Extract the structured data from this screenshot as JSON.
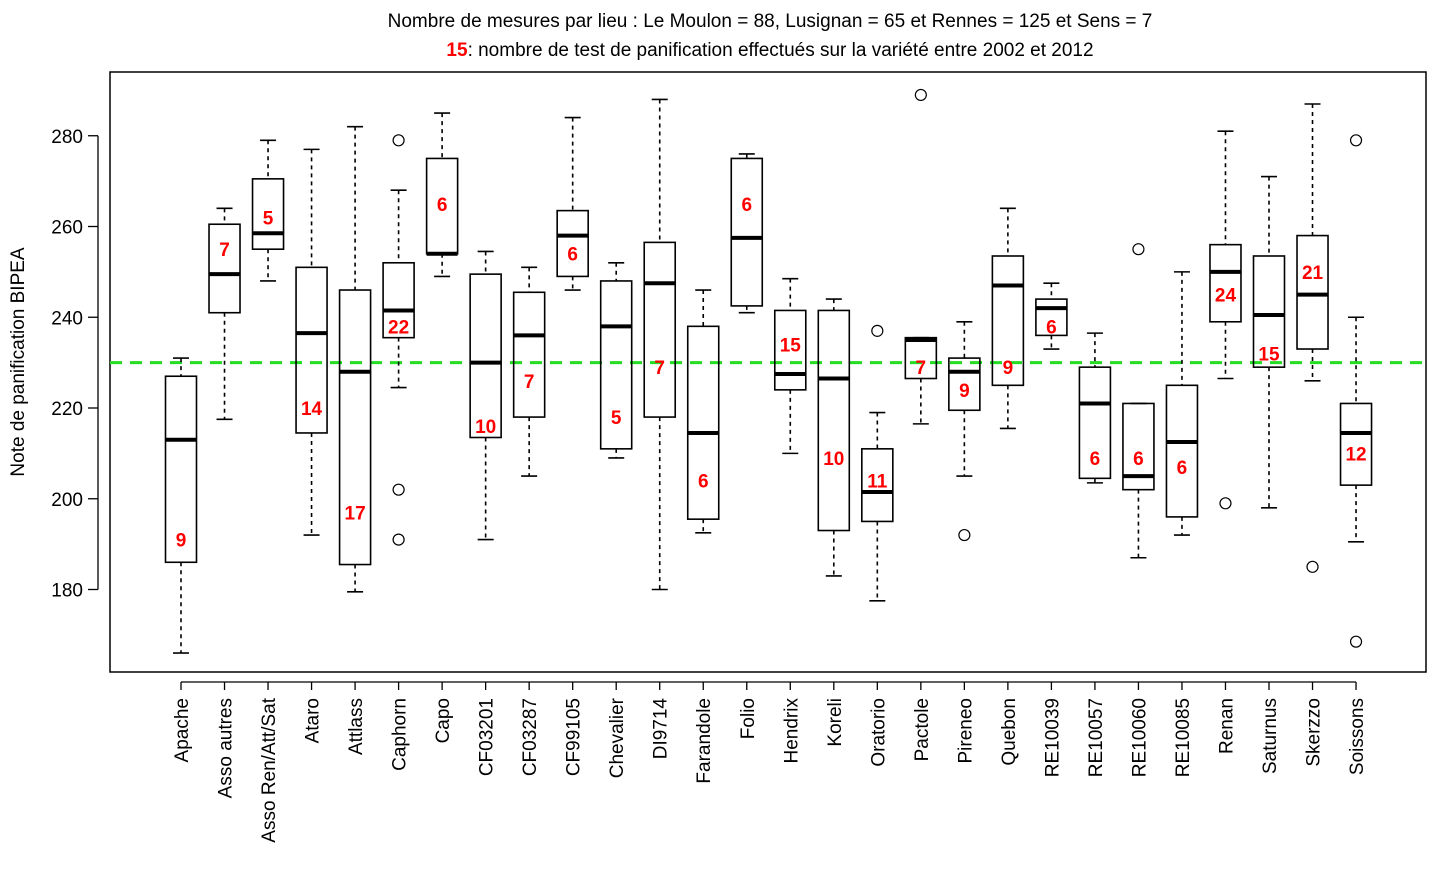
{
  "chart_data": {
    "type": "boxplot",
    "title_line1": "Nombre de mesures par lieu : Le Moulon = 88, Lusignan = 65 et Rennes = 125 et Sens = 7",
    "title_line2_number": "15",
    "title_line2_text": ": nombre de test de panification effectués sur la variété entre 2002 et 2012",
    "ylabel": "Note de panification BIPEA",
    "xlabel": "",
    "ylim": [
      162,
      292
    ],
    "yticks": [
      180,
      200,
      220,
      240,
      260,
      280
    ],
    "grid": false,
    "reference_line": {
      "y": 230,
      "color": "#22dd22",
      "style": "dashed"
    },
    "count_color": "#ff0000",
    "categories": [
      "Apache",
      "Asso autres",
      "Asso Ren/Att/Sat",
      "Ataro",
      "Attlass",
      "Caphorn",
      "Capo",
      "CF03201",
      "CF03287",
      "CF99105",
      "Chevalier",
      "DI9714",
      "Farandole",
      "Folio",
      "Hendrix",
      "Koreli",
      "Oratorio",
      "Pactole",
      "Pireneo",
      "Quebon",
      "RE10039",
      "RE10057",
      "RE10060",
      "RE10085",
      "Renan",
      "Saturnus",
      "Skerzzo",
      "Soissons"
    ],
    "boxes": [
      {
        "name": "Apache",
        "whisker_low": 166,
        "q1": 186,
        "median": 213,
        "q3": 227,
        "whisker_high": 231,
        "outliers": [],
        "n": "9",
        "n_y": 191
      },
      {
        "name": "Asso autres",
        "whisker_low": 217.5,
        "q1": 241,
        "median": 249.5,
        "q3": 260.5,
        "whisker_high": 264,
        "outliers": [],
        "n": "7",
        "n_y": 255
      },
      {
        "name": "Asso Ren/Att/Sat",
        "whisker_low": 248,
        "q1": 255,
        "median": 258.5,
        "q3": 270.5,
        "whisker_high": 279,
        "outliers": [],
        "n": "5",
        "n_y": 262
      },
      {
        "name": "Ataro",
        "whisker_low": 192,
        "q1": 214.5,
        "median": 236.5,
        "q3": 251,
        "whisker_high": 277,
        "outliers": [],
        "n": "14",
        "n_y": 220
      },
      {
        "name": "Attlass",
        "whisker_low": 179.5,
        "q1": 185.5,
        "median": 228,
        "q3": 246,
        "whisker_high": 282,
        "outliers": [],
        "n": "17",
        "n_y": 197
      },
      {
        "name": "Caphorn",
        "whisker_low": 224.5,
        "q1": 235.5,
        "median": 241.5,
        "q3": 252,
        "whisker_high": 268,
        "outliers": [
          279,
          202,
          191
        ],
        "n": "22",
        "n_y": 238
      },
      {
        "name": "Capo",
        "whisker_low": 249,
        "q1": 254,
        "median": 254,
        "q3": 275,
        "whisker_high": 285,
        "outliers": [],
        "n": "6",
        "n_y": 265
      },
      {
        "name": "CF03201",
        "whisker_low": 191,
        "q1": 213.5,
        "median": 230,
        "q3": 249.5,
        "whisker_high": 254.5,
        "outliers": [],
        "n": "10",
        "n_y": 216
      },
      {
        "name": "CF03287",
        "whisker_low": 205,
        "q1": 218,
        "median": 236,
        "q3": 245.5,
        "whisker_high": 251,
        "outliers": [],
        "n": "7",
        "n_y": 226
      },
      {
        "name": "CF99105",
        "whisker_low": 246,
        "q1": 249,
        "median": 258,
        "q3": 263.5,
        "whisker_high": 284,
        "outliers": [],
        "n": "6",
        "n_y": 254
      },
      {
        "name": "Chevalier",
        "whisker_low": 209,
        "q1": 211,
        "median": 238,
        "q3": 248,
        "whisker_high": 252,
        "outliers": [],
        "n": "5",
        "n_y": 218
      },
      {
        "name": "DI9714",
        "whisker_low": 180,
        "q1": 218,
        "median": 247.5,
        "q3": 256.5,
        "whisker_high": 288,
        "outliers": [],
        "n": "7",
        "n_y": 229
      },
      {
        "name": "Farandole",
        "whisker_low": 192.5,
        "q1": 195.5,
        "median": 214.5,
        "q3": 238,
        "whisker_high": 246,
        "outliers": [],
        "n": "6",
        "n_y": 204
      },
      {
        "name": "Folio",
        "whisker_low": 241,
        "q1": 242.5,
        "median": 257.5,
        "q3": 275,
        "whisker_high": 276,
        "outliers": [],
        "n": "6",
        "n_y": 265
      },
      {
        "name": "Hendrix",
        "whisker_low": 210,
        "q1": 224,
        "median": 227.5,
        "q3": 241.5,
        "whisker_high": 248.5,
        "outliers": [],
        "n": "15",
        "n_y": 234
      },
      {
        "name": "Koreli",
        "whisker_low": 183,
        "q1": 193,
        "median": 226.5,
        "q3": 241.5,
        "whisker_high": 244,
        "outliers": [],
        "n": "10",
        "n_y": 209
      },
      {
        "name": "Oratorio",
        "whisker_low": 177.5,
        "q1": 195,
        "median": 201.5,
        "q3": 211,
        "whisker_high": 219,
        "outliers": [
          237
        ],
        "n": "11",
        "n_y": 204
      },
      {
        "name": "Pactole",
        "whisker_low": 216.5,
        "q1": 226.5,
        "median": 235,
        "q3": 235.5,
        "whisker_high": 235.5,
        "outliers": [
          289
        ],
        "n": "7",
        "n_y": 229
      },
      {
        "name": "Pireneo",
        "whisker_low": 205,
        "q1": 219.5,
        "median": 228,
        "q3": 231,
        "whisker_high": 239,
        "outliers": [
          192
        ],
        "n": "9",
        "n_y": 224
      },
      {
        "name": "Quebon",
        "whisker_low": 215.5,
        "q1": 225,
        "median": 247,
        "q3": 253.5,
        "whisker_high": 264,
        "outliers": [],
        "n": "9",
        "n_y": 229
      },
      {
        "name": "RE10039",
        "whisker_low": 233,
        "q1": 236,
        "median": 242,
        "q3": 244,
        "whisker_high": 247.5,
        "outliers": [],
        "n": "6",
        "n_y": 238
      },
      {
        "name": "RE10057",
        "whisker_low": 203.5,
        "q1": 204.5,
        "median": 221,
        "q3": 229,
        "whisker_high": 236.5,
        "outliers": [],
        "n": "6",
        "n_y": 209
      },
      {
        "name": "RE10060",
        "whisker_low": 187,
        "q1": 202,
        "median": 205,
        "q3": 221,
        "whisker_high": 221,
        "outliers": [
          255
        ],
        "n": "6",
        "n_y": 209
      },
      {
        "name": "RE10085",
        "whisker_low": 192,
        "q1": 196,
        "median": 212.5,
        "q3": 225,
        "whisker_high": 250,
        "outliers": [],
        "n": "6",
        "n_y": 207
      },
      {
        "name": "Renan",
        "whisker_low": 226.5,
        "q1": 239,
        "median": 250,
        "q3": 256,
        "whisker_high": 281,
        "outliers": [
          199
        ],
        "n": "24",
        "n_y": 245
      },
      {
        "name": "Saturnus",
        "whisker_low": 198,
        "q1": 229,
        "median": 240.5,
        "q3": 253.5,
        "whisker_high": 271,
        "outliers": [],
        "n": "15",
        "n_y": 232
      },
      {
        "name": "Skerzzo",
        "whisker_low": 226,
        "q1": 233,
        "median": 245,
        "q3": 258,
        "whisker_high": 287,
        "outliers": [
          185
        ],
        "n": "21",
        "n_y": 250
      },
      {
        "name": "Soissons",
        "whisker_low": 190.5,
        "q1": 203,
        "median": 214.5,
        "q3": 221,
        "whisker_high": 240,
        "outliers": [
          279,
          168.5
        ],
        "n": "12",
        "n_y": 210
      }
    ]
  }
}
